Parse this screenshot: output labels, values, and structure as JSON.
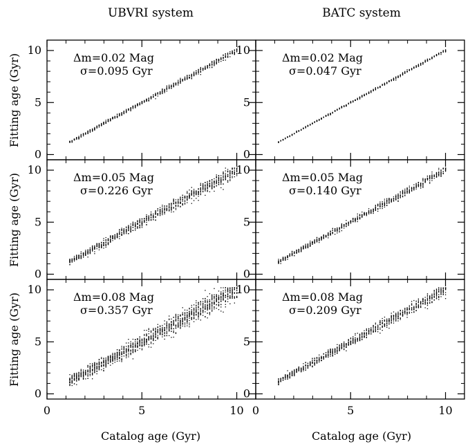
{
  "columns": [
    {
      "title": "UBVRI system",
      "xlabel": "Catalog age (Gyr)"
    },
    {
      "title": "BATC system",
      "xlabel": "Catalog age (Gyr)"
    }
  ],
  "ylabel": "Fitting age (Gyr)",
  "chart_data": [
    {
      "type": "scatter",
      "panel": "UBVRI Δm=0.02",
      "annotation_line1": "Δm=0.02 Mag",
      "annotation_line2": "σ=0.095 Gyr",
      "xlim": [
        0,
        11
      ],
      "ylim": [
        -0.5,
        11
      ],
      "xticks": [
        0,
        5,
        10
      ],
      "yticks": [
        0,
        5,
        10
      ],
      "x_range": [
        1.2,
        10
      ],
      "spread_sigma_gyr": 0.095,
      "grid": false
    },
    {
      "type": "scatter",
      "panel": "BATC Δm=0.02",
      "annotation_line1": "Δm=0.02 Mag",
      "annotation_line2": "σ=0.047 Gyr",
      "xlim": [
        0,
        11
      ],
      "ylim": [
        -0.5,
        11
      ],
      "xticks": [
        0,
        5,
        10
      ],
      "yticks": [
        0,
        5,
        10
      ],
      "x_range": [
        1.2,
        10
      ],
      "spread_sigma_gyr": 0.047,
      "grid": false
    },
    {
      "type": "scatter",
      "panel": "UBVRI Δm=0.05",
      "annotation_line1": "Δm=0.05 Mag",
      "annotation_line2": "σ=0.226 Gyr",
      "xlim": [
        0,
        11
      ],
      "ylim": [
        -0.5,
        11
      ],
      "xticks": [
        0,
        5,
        10
      ],
      "yticks": [
        0,
        5,
        10
      ],
      "x_range": [
        1.2,
        10
      ],
      "spread_sigma_gyr": 0.226,
      "grid": false
    },
    {
      "type": "scatter",
      "panel": "BATC Δm=0.05",
      "annotation_line1": "Δm=0.05 Mag",
      "annotation_line2": "σ=0.140 Gyr",
      "xlim": [
        0,
        11
      ],
      "ylim": [
        -0.5,
        11
      ],
      "xticks": [
        0,
        5,
        10
      ],
      "yticks": [
        0,
        5,
        10
      ],
      "x_range": [
        1.2,
        10
      ],
      "spread_sigma_gyr": 0.14,
      "grid": false
    },
    {
      "type": "scatter",
      "panel": "UBVRI Δm=0.08",
      "annotation_line1": "Δm=0.08 Mag",
      "annotation_line2": "σ=0.357 Gyr",
      "xlim": [
        0,
        11
      ],
      "ylim": [
        -0.5,
        11
      ],
      "xticks": [
        0,
        5,
        10
      ],
      "yticks": [
        0,
        5,
        10
      ],
      "x_range": [
        1.2,
        10
      ],
      "spread_sigma_gyr": 0.357,
      "grid": false
    },
    {
      "type": "scatter",
      "panel": "BATC Δm=0.08",
      "annotation_line1": "Δm=0.08 Mag",
      "annotation_line2": "σ=0.209 Gyr",
      "xlim": [
        0,
        11
      ],
      "ylim": [
        -0.5,
        11
      ],
      "xticks": [
        0,
        5,
        10
      ],
      "yticks": [
        0,
        5,
        10
      ],
      "x_range": [
        1.2,
        10
      ],
      "spread_sigma_gyr": 0.209,
      "grid": false
    }
  ]
}
